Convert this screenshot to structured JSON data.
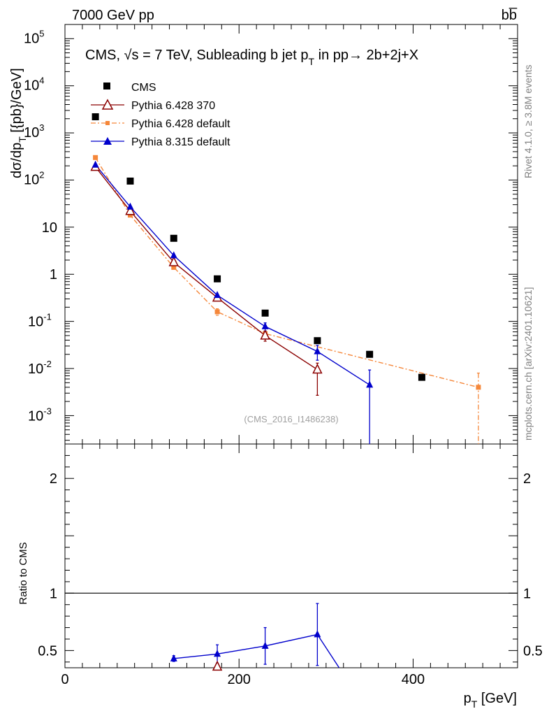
{
  "header": {
    "left": "7000 GeV pp",
    "right": "bb̅"
  },
  "side_labels": {
    "rivet": "Rivet 4.1.0, ≥ 3.8M events",
    "site": "mcplots.cern.ch [arXiv:2401.10621]"
  },
  "chart_data": {
    "type": "line",
    "title": "CMS, √s = 7 TeV, Subleading b jet p",
    "title_sub": "T",
    "title_rest": " in pp→  2b+2j+X",
    "analysis_tag": "(CMS_2016_I1486238)",
    "ylabel_main": "dσ/dp",
    "ylabel_main_sub": "T",
    "ylabel_main_rest": " [{pb}/GeV]",
    "ylabel_ratio": "Ratio to CMS",
    "xlabel": "p",
    "xlabel_sub": "T",
    "xlabel_rest": " [GeV]",
    "x_range": [
      0,
      520
    ],
    "y_range_main": [
      0.00025,
      200000
    ],
    "y_scale_main": "log",
    "y_range_ratio": [
      0.35,
      2.3
    ],
    "x_ticks": [
      "0",
      "200",
      "400"
    ],
    "y_ticks_main": [
      "10",
      "1",
      "10"
    ],
    "y_ticks_main_exp": [
      "5",
      "4",
      "3",
      "2",
      "-1",
      "-2",
      "-3"
    ],
    "y_ticks_ratio": [
      "2",
      "1",
      "0.5"
    ],
    "series": [
      {
        "name": "CMS",
        "color": "#000000",
        "marker": "square",
        "x": [
          35,
          75,
          125,
          175,
          230,
          290,
          350,
          410
        ],
        "y": [
          2200,
          95,
          5.8,
          0.8,
          0.15,
          0.039,
          0.02,
          0.0065
        ]
      },
      {
        "name": "Pythia 6.428 370",
        "color": "#8b0000",
        "marker": "open-triangle",
        "x": [
          35,
          75,
          125,
          175,
          230,
          290
        ],
        "y": [
          190,
          22,
          1.8,
          0.32,
          0.05,
          0.0095
        ],
        "err_low": [
          0,
          0,
          0,
          0,
          0.012,
          0.0068
        ],
        "err_high": [
          0,
          0,
          0,
          0,
          0.012,
          0.0035
        ]
      },
      {
        "name": "Pythia 6.428 default",
        "color": "#f5873a",
        "marker": "small-square",
        "dashed": true,
        "x": [
          35,
          75,
          125,
          175,
          230,
          475
        ],
        "y": [
          300,
          18,
          1.4,
          0.16,
          0.055,
          0.004
        ],
        "err_low": [
          0,
          0,
          0,
          0.025,
          0,
          0.0038
        ],
        "err_high": [
          0,
          0,
          0,
          0.025,
          0,
          0.004
        ]
      },
      {
        "name": "Pythia 8.315 default",
        "color": "#0000cc",
        "marker": "triangle",
        "x": [
          35,
          75,
          125,
          175,
          230,
          290,
          350
        ],
        "y": [
          210,
          27,
          2.5,
          0.36,
          0.078,
          0.023,
          0.0045
        ],
        "err_low": [
          0,
          0,
          0,
          0,
          0.015,
          0.008,
          0.0045
        ],
        "err_high": [
          0,
          0,
          0,
          0,
          0.015,
          0.008,
          0.0048
        ]
      }
    ],
    "ratio_series": [
      {
        "name": "Pythia 8.315 default",
        "color": "#0000cc",
        "x": [
          125,
          175,
          230,
          290
        ],
        "y": [
          0.43,
          0.47,
          0.54,
          0.64
        ],
        "err": [
          0.025,
          0.08,
          0.16,
          0.27
        ],
        "line_end": [
          315,
          0.35
        ]
      },
      {
        "name": "Pythia 6.428 370",
        "color": "#8b0000",
        "x": [
          175
        ],
        "y": [
          0.36
        ],
        "err": [
          0.01
        ]
      }
    ]
  }
}
